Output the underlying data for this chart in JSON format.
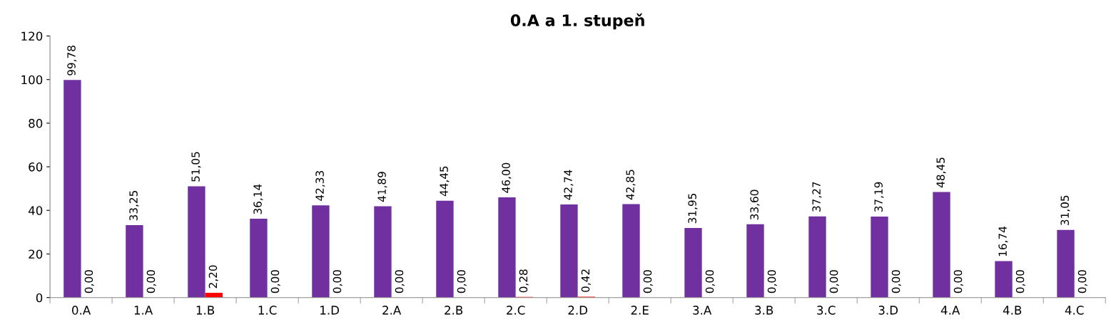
{
  "chart_data": {
    "type": "bar",
    "title": "0.A a 1. stupeň",
    "categories": [
      "0.A",
      "1.A",
      "1.B",
      "1.C",
      "1.D",
      "2.A",
      "2.B",
      "2.C",
      "2.D",
      "2.E",
      "3.A",
      "3.B",
      "3.C",
      "3.D",
      "4.A",
      "4.B",
      "4.C"
    ],
    "series": [
      {
        "color": "#7030a0",
        "values": [
          99.78,
          33.25,
          51.05,
          36.14,
          42.33,
          41.89,
          44.45,
          46.0,
          42.74,
          42.85,
          31.95,
          33.6,
          37.27,
          37.19,
          48.45,
          16.74,
          31.05
        ],
        "value_labels": [
          "99,78",
          "33,25",
          "51,05",
          "36,14",
          "42,33",
          "41,89",
          "44,45",
          "46,00",
          "42,74",
          "42,85",
          "31,95",
          "33,60",
          "37,27",
          "37,19",
          "48,45",
          "16,74",
          "31,05"
        ]
      },
      {
        "color": "#ff0000",
        "values": [
          0,
          0,
          2.2,
          0,
          0,
          0,
          0,
          0.28,
          0.42,
          0,
          0,
          0,
          0,
          0,
          0,
          0,
          0
        ],
        "value_labels": [
          "0,00",
          "0,00",
          "2,20",
          "0,00",
          "0,00",
          "0,00",
          "0,00",
          "0,28",
          "0,42",
          "0,00",
          "0,00",
          "0,00",
          "0,00",
          "0,00",
          "0,00",
          "0,00",
          "0,00"
        ]
      }
    ],
    "ylim": [
      0,
      120
    ],
    "yticks": [
      0,
      20,
      40,
      60,
      80,
      100,
      120
    ],
    "grid": false
  }
}
